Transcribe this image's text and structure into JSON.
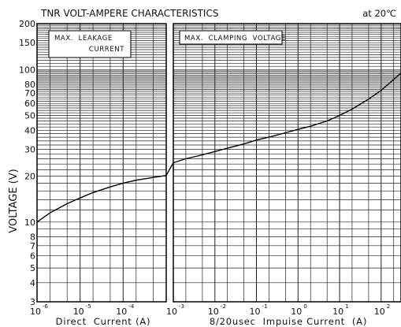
{
  "chart_data": {
    "type": "line",
    "title": "TNR VOLT-AMPERE CHARACTERISTICS",
    "condition": "at 20℃",
    "ylabel": "VOLTAGE (V)",
    "yscale": "log",
    "ylim": [
      3,
      200
    ],
    "yticks": [
      3,
      4,
      5,
      6,
      7,
      8,
      10,
      20,
      30,
      40,
      50,
      60,
      70,
      80,
      100,
      150,
      200
    ],
    "panels": [
      {
        "id": "left",
        "box_label": [
          "MAX.  LEAKAGE",
          "CURRENT"
        ],
        "xlabel": "Direct  Current (A)",
        "xscale": "log",
        "xlim": [
          1e-06,
          0.001
        ],
        "xticks": [
          {
            "value": 1e-06,
            "base": "10",
            "exp": "-6"
          },
          {
            "value": 1e-05,
            "base": "10",
            "exp": "-5"
          },
          {
            "value": 0.0001,
            "base": "10",
            "exp": "-4"
          }
        ],
        "series": [
          {
            "x": [
              1e-06,
              2e-06,
              5e-06,
              1e-05,
              2e-05,
              5e-05,
              0.0001,
              0.0002,
              0.0005,
              0.001
            ],
            "y": [
              10,
              11.5,
              13.2,
              14.4,
              15.6,
              17.0,
              18.0,
              18.8,
              19.6,
              20.2
            ]
          }
        ]
      },
      {
        "id": "right",
        "box_label": [
          "MAX.  CLAMPING  VOLTAGE"
        ],
        "xlabel": "8/20usec  Impuise Current  (A)",
        "xscale": "log",
        "xlim": [
          0.001,
          300
        ],
        "xticks": [
          {
            "value": 0.001,
            "base": "10",
            "exp": "-3"
          },
          {
            "value": 0.01,
            "base": "10",
            "exp": "-2"
          },
          {
            "value": 0.1,
            "base": "10",
            "exp": "-1"
          },
          {
            "value": 1,
            "base": "10",
            "exp": "0"
          },
          {
            "value": 10,
            "base": "10",
            "exp": "1"
          },
          {
            "value": 100,
            "base": "10",
            "exp": "2"
          }
        ],
        "series": [
          {
            "x": [
              0.001,
              0.002,
              0.005,
              0.01,
              0.02,
              0.05,
              0.1,
              0.2,
              0.5,
              1,
              2,
              5,
              10,
              20,
              50,
              100,
              200,
              300
            ],
            "y": [
              24.5,
              26.0,
              27.6,
              29.0,
              30.5,
              32.5,
              34.5,
              36.0,
              38.5,
              40.5,
              42.5,
              46.0,
              50.0,
              55.0,
              64.0,
              73.0,
              86.0,
              95.0
            ]
          }
        ]
      }
    ],
    "grid": true
  }
}
